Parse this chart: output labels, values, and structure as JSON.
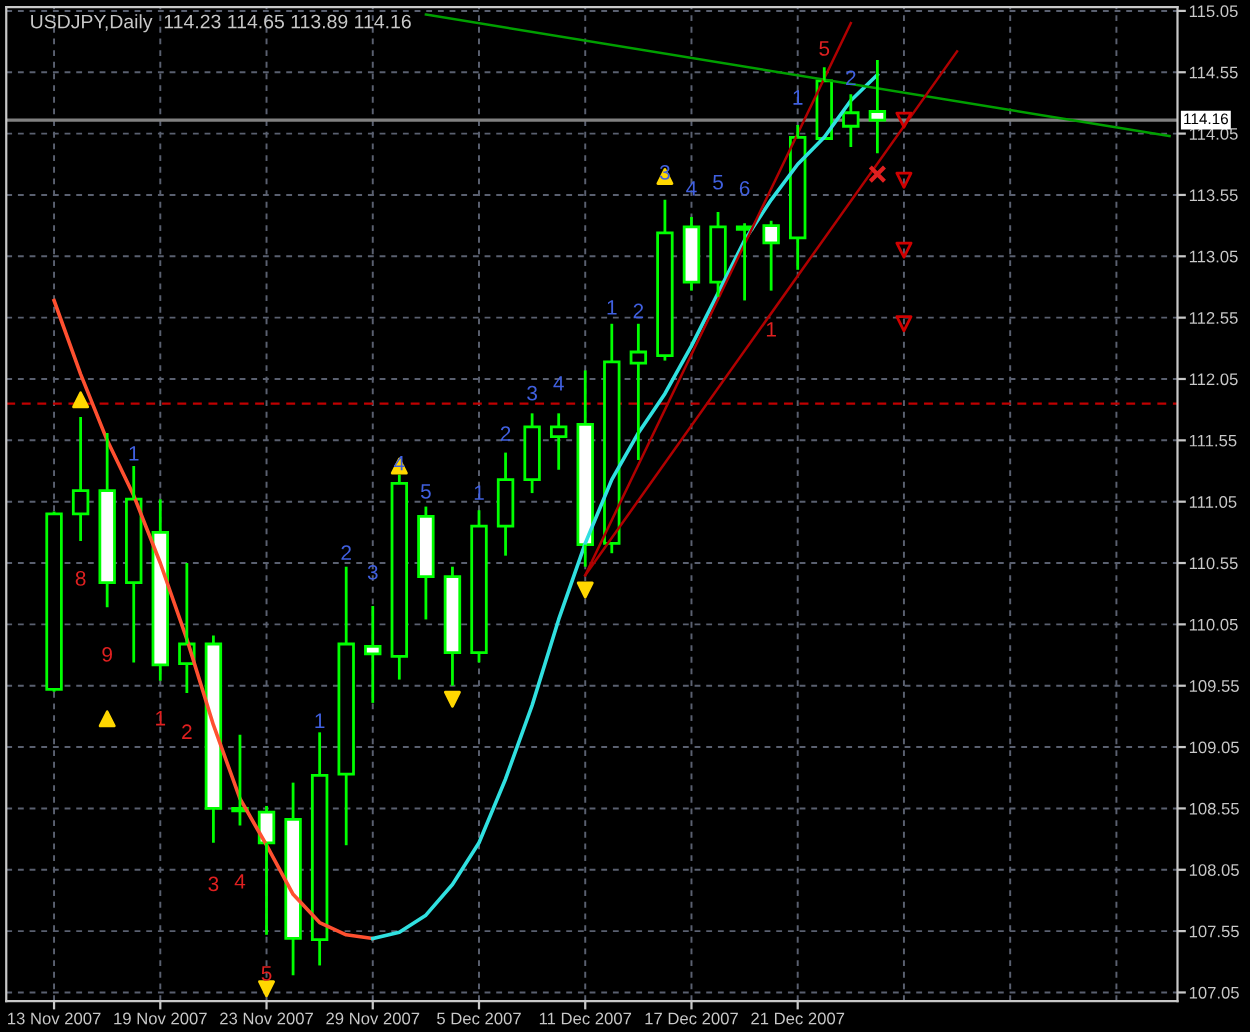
{
  "chart_data": {
    "type": "candlestick",
    "title": "USDJPY,Daily  114.23 114.65 113.89 114.16",
    "categories": [
      "13 Nov 2007",
      null,
      null,
      null,
      "19 Nov 2007",
      null,
      null,
      null,
      "23 Nov 2007",
      null,
      null,
      null,
      "29 Nov 2007",
      null,
      null,
      null,
      "5 Dec 2007",
      null,
      null,
      null,
      "11 Dec 2007",
      null,
      null,
      null,
      "17 Dec 2007",
      null,
      null,
      null,
      "21 Dec 2007",
      null,
      null,
      null,
      null,
      null,
      null,
      null,
      null,
      null,
      null,
      null,
      null,
      null,
      null
    ],
    "color": "#00ff00",
    "ohlc": [
      [
        109.52,
        110.97,
        109.5,
        110.95
      ],
      [
        110.95,
        111.74,
        110.73,
        111.14
      ],
      [
        111.14,
        111.61,
        110.19,
        110.39
      ],
      [
        110.39,
        111.34,
        109.74,
        111.07
      ],
      [
        110.8,
        111.07,
        109.59,
        109.72
      ],
      [
        109.73,
        110.55,
        109.49,
        109.89
      ],
      [
        109.89,
        109.96,
        108.27,
        108.55
      ],
      [
        108.53,
        109.15,
        108.41,
        108.55
      ],
      [
        108.52,
        108.57,
        107.52,
        108.27
      ],
      [
        108.46,
        108.76,
        107.19,
        107.49
      ],
      [
        107.48,
        109.17,
        107.27,
        108.82
      ],
      [
        108.83,
        110.52,
        108.25,
        109.89
      ],
      [
        109.87,
        110.2,
        109.41,
        109.81
      ],
      [
        109.79,
        111.27,
        109.6,
        111.2
      ],
      [
        110.93,
        111.01,
        110.09,
        110.44
      ],
      [
        110.44,
        110.52,
        109.55,
        109.82
      ],
      [
        109.82,
        110.98,
        109.74,
        110.85
      ],
      [
        110.85,
        111.45,
        110.61,
        111.23
      ],
      [
        111.23,
        111.77,
        111.12,
        111.66
      ],
      [
        111.58,
        111.77,
        111.31,
        111.66
      ],
      [
        111.68,
        112.12,
        110.52,
        110.7
      ],
      [
        110.71,
        112.5,
        110.63,
        112.19
      ],
      [
        112.18,
        112.5,
        111.39,
        112.27
      ],
      [
        112.24,
        113.51,
        112.2,
        113.24
      ],
      [
        113.29,
        113.37,
        112.77,
        112.84
      ],
      [
        112.84,
        113.41,
        112.72,
        113.29
      ],
      [
        113.27,
        113.32,
        112.69,
        113.29
      ],
      [
        113.3,
        113.34,
        112.77,
        113.16
      ],
      [
        113.2,
        114.12,
        112.94,
        114.02
      ],
      [
        114.01,
        114.59,
        114.01,
        114.48
      ],
      [
        114.11,
        114.37,
        113.94,
        114.22
      ],
      [
        114.23,
        114.65,
        113.89,
        114.16
      ],
      null,
      null,
      null,
      null,
      null,
      null,
      null,
      null,
      null,
      null,
      null
    ],
    "series": [
      {
        "type": "line",
        "color": "#ff5030",
        "values": [
          112.69,
          112.09,
          111.55,
          111.1,
          110.55,
          109.93,
          109.23,
          108.63,
          108.25,
          107.85,
          107.62,
          107.52,
          107.49,
          null,
          null,
          null,
          null,
          null,
          null,
          null,
          null,
          null,
          null,
          null,
          null,
          null,
          null,
          null,
          null,
          null,
          null,
          null,
          null,
          null,
          null,
          null,
          null,
          null,
          null,
          null,
          null,
          null,
          null
        ]
      },
      {
        "type": "line",
        "color": "#30e0e0",
        "values": [
          null,
          null,
          null,
          null,
          null,
          null,
          null,
          null,
          null,
          null,
          null,
          null,
          107.49,
          107.54,
          107.68,
          107.93,
          108.27,
          108.79,
          109.39,
          110.09,
          110.71,
          111.23,
          111.61,
          111.93,
          112.32,
          112.75,
          113.18,
          113.51,
          113.8,
          114.02,
          114.32,
          114.53,
          null,
          null,
          null,
          null,
          null,
          null,
          null,
          null,
          null,
          null,
          null
        ]
      },
      {
        "type": "line",
        "color": "#00a000",
        "values": [
          null,
          null,
          null,
          null,
          null,
          null,
          null,
          null,
          null,
          null,
          null,
          null,
          null,
          null,
          115.02,
          null,
          null,
          null,
          null,
          null,
          null,
          null,
          null,
          null,
          null,
          null,
          null,
          null,
          null,
          null,
          null,
          null,
          null,
          null,
          null,
          null,
          null,
          null,
          null,
          null,
          null,
          null,
          114.03
        ]
      },
      {
        "type": "line",
        "color": "#b00000",
        "values": [
          null,
          null,
          null,
          null,
          null,
          null,
          null,
          null,
          null,
          null,
          null,
          null,
          null,
          null,
          null,
          null,
          null,
          null,
          null,
          null,
          110.45,
          null,
          null,
          null,
          null,
          null,
          null,
          null,
          null,
          null,
          114.95,
          null,
          null,
          null,
          null,
          null,
          null,
          null,
          null,
          null,
          null,
          null,
          null
        ]
      },
      {
        "type": "line",
        "color": "#b00000",
        "values": [
          null,
          null,
          null,
          null,
          null,
          null,
          null,
          null,
          null,
          null,
          null,
          null,
          null,
          null,
          null,
          null,
          null,
          null,
          null,
          null,
          110.45,
          null,
          null,
          null,
          null,
          null,
          null,
          null,
          null,
          null,
          null,
          null,
          null,
          null,
          114.72,
          null,
          null,
          null,
          null,
          null,
          null,
          null,
          null
        ]
      },
      {
        "type": "scatter",
        "marker": "triangle",
        "color": "#ffd700",
        "values": [
          null,
          111.88,
          109.28,
          null,
          null,
          null,
          null,
          null,
          null,
          null,
          null,
          null,
          null,
          111.34,
          null,
          null,
          null,
          null,
          null,
          null,
          null,
          null,
          null,
          113.7,
          null,
          null,
          null,
          null,
          null,
          null,
          null,
          null,
          null,
          null,
          null,
          null,
          null,
          null,
          null,
          null,
          null,
          null,
          null
        ]
      },
      {
        "type": "scatter",
        "marker": "triangle_down",
        "color": "#ffd700",
        "values": [
          null,
          null,
          null,
          null,
          null,
          null,
          null,
          null,
          107.08,
          null,
          null,
          null,
          null,
          null,
          null,
          109.44,
          null,
          null,
          null,
          null,
          110.33,
          null,
          null,
          null,
          null,
          null,
          null,
          null,
          null,
          null,
          null,
          null,
          null,
          null,
          null,
          null,
          null,
          null,
          null,
          null,
          null,
          null,
          null
        ]
      },
      {
        "type": "scatter",
        "marker": "triangle_down",
        "color": "#d00000",
        "values": [
          null,
          null,
          null,
          null,
          null,
          null,
          null,
          null,
          null,
          null,
          null,
          null,
          null,
          null,
          null,
          null,
          null,
          null,
          null,
          null,
          null,
          null,
          null,
          null,
          null,
          null,
          null,
          null,
          null,
          null,
          null,
          null,
          114.16,
          null,
          null,
          null,
          null,
          null,
          null,
          null,
          null,
          null,
          null
        ]
      },
      {
        "type": "scatter",
        "marker": "triangle_down",
        "color": "#d00000",
        "values": [
          null,
          null,
          null,
          null,
          null,
          null,
          null,
          null,
          null,
          null,
          null,
          null,
          null,
          null,
          null,
          null,
          null,
          null,
          null,
          null,
          null,
          null,
          null,
          null,
          null,
          null,
          null,
          null,
          null,
          null,
          null,
          null,
          113.67,
          null,
          null,
          null,
          null,
          null,
          null,
          null,
          null,
          null,
          null
        ]
      },
      {
        "type": "scatter",
        "marker": "triangle_down",
        "color": "#d00000",
        "values": [
          null,
          null,
          null,
          null,
          null,
          null,
          null,
          null,
          null,
          null,
          null,
          null,
          null,
          null,
          null,
          null,
          null,
          null,
          null,
          null,
          null,
          null,
          null,
          null,
          null,
          null,
          null,
          null,
          null,
          null,
          null,
          null,
          113.1,
          null,
          null,
          null,
          null,
          null,
          null,
          null,
          null,
          null,
          null
        ]
      },
      {
        "type": "scatter",
        "marker": "triangle_down",
        "color": "#d00000",
        "values": [
          null,
          null,
          null,
          null,
          null,
          null,
          null,
          null,
          null,
          null,
          null,
          null,
          null,
          null,
          null,
          null,
          null,
          null,
          null,
          null,
          null,
          null,
          null,
          null,
          null,
          null,
          null,
          null,
          null,
          null,
          null,
          null,
          112.5,
          null,
          null,
          null,
          null,
          null,
          null,
          null,
          null,
          null,
          null
        ]
      },
      {
        "type": "scatter",
        "marker": "cross",
        "color": "#e02020",
        "values": [
          null,
          null,
          null,
          null,
          null,
          null,
          null,
          null,
          null,
          null,
          null,
          null,
          null,
          null,
          null,
          null,
          null,
          null,
          null,
          null,
          null,
          null,
          null,
          null,
          null,
          null,
          null,
          null,
          null,
          null,
          null,
          113.72,
          null,
          null,
          null,
          null,
          null,
          null,
          null,
          null,
          null,
          null,
          null
        ]
      }
    ],
    "annotations": [
      "8",
      "9",
      "1",
      "2",
      "3",
      "4",
      "5",
      "1",
      "5",
      "1",
      "1",
      "2",
      "3",
      "4",
      "5",
      "1",
      "2",
      "3",
      "4",
      "1",
      "2",
      "3",
      "4",
      "5",
      "6",
      "1",
      "2"
    ],
    "ylim": [
      106.98,
      115.08
    ],
    "yticks": [
      107.05,
      107.55,
      108.05,
      108.55,
      109.05,
      109.55,
      110.05,
      110.55,
      111.05,
      111.55,
      112.05,
      112.55,
      113.05,
      113.55,
      114.05,
      114.55,
      115.05
    ],
    "ref_lines": [
      {
        "axis": "y",
        "value": 114.16,
        "label": "114.16",
        "color": "#808080",
        "line_style": "solid"
      },
      {
        "axis": "y",
        "value": 111.85,
        "color": "#c00000",
        "line_style": "dashed"
      }
    ],
    "grid": true
  }
}
